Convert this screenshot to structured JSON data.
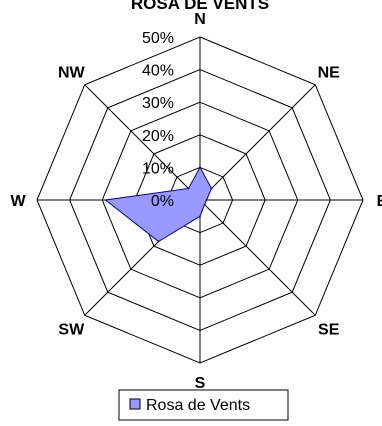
{
  "chart_data": {
    "type": "radar",
    "title": "ROSA DE VENTS",
    "directions": [
      "N",
      "NE",
      "E",
      "SE",
      "S",
      "SW",
      "W",
      "NW"
    ],
    "tick_labels": [
      "0%",
      "10%",
      "20%",
      "30%",
      "40%",
      "50%"
    ],
    "range": [
      0,
      50
    ],
    "series": [
      {
        "name": "Rosa de Vents",
        "values": [
          10,
          5,
          2,
          2,
          5,
          18,
          29,
          5
        ],
        "fill": "#9999ff",
        "stroke": "#000080"
      }
    ],
    "legend_placement": "bottom",
    "grid": true
  },
  "colors": {
    "grid": "#000000",
    "series_fill": "#9999ff",
    "series_stroke": "#000080"
  }
}
